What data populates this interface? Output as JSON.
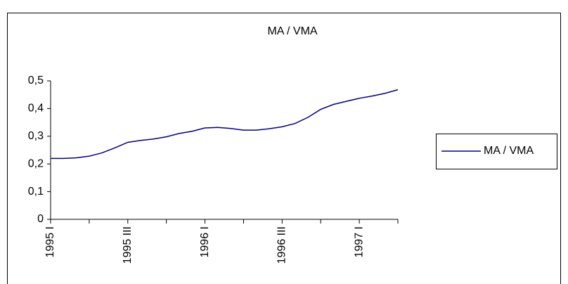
{
  "chart_data": {
    "type": "line",
    "title": "MA / VMA",
    "categories": [
      "1995 I",
      null,
      null,
      null,
      null,
      null,
      "1995 III",
      null,
      null,
      null,
      null,
      null,
      "1996 I",
      null,
      null,
      null,
      null,
      null,
      "1996 III",
      null,
      null,
      null,
      null,
      null,
      "1997 I",
      null,
      null,
      null
    ],
    "series": [
      {
        "name": "MA / VMA",
        "color": "#000080",
        "values": [
          0.22,
          0.22,
          0.222,
          0.228,
          0.24,
          0.258,
          0.278,
          0.285,
          0.29,
          0.298,
          0.31,
          0.318,
          0.33,
          0.332,
          0.328,
          0.322,
          0.322,
          0.327,
          0.334,
          0.346,
          0.368,
          0.397,
          0.415,
          0.426,
          0.437,
          0.445,
          0.455,
          0.468
        ]
      }
    ],
    "ylim": [
      0,
      0.5
    ],
    "yticks": [
      0,
      {
        "value": 0.1,
        "label": "0,1"
      },
      {
        "value": 0.2,
        "label": "0,2"
      },
      {
        "value": 0.3,
        "label": "0,3"
      },
      {
        "value": 0.4,
        "label": "0,4"
      },
      {
        "value": 0.5,
        "label": "0,5"
      }
    ],
    "grid": false,
    "legend": "right"
  }
}
